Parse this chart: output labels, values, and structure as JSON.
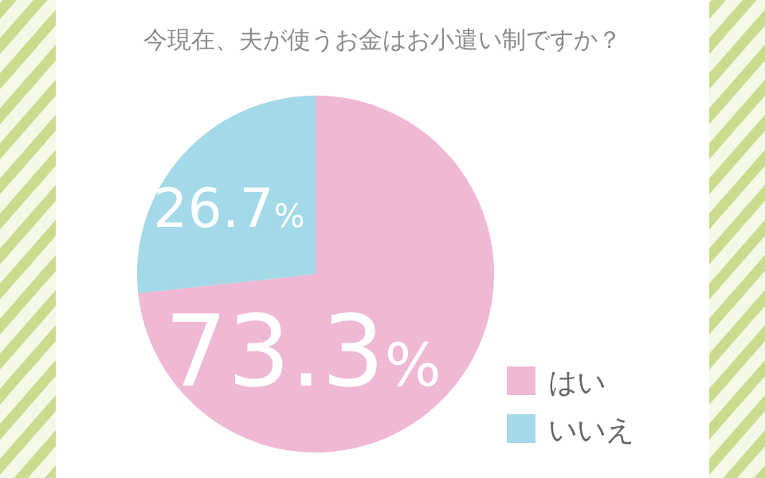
{
  "chart_data": {
    "type": "pie",
    "title": "今現在、夫が使うお金はお小遣い制ですか？",
    "categories": [
      "はい",
      "いいえ"
    ],
    "values": [
      73.3,
      26.7
    ],
    "colors": [
      "#efb8d5",
      "#a3d9e8"
    ],
    "value_labels": [
      "73.3%",
      "26.7%"
    ],
    "legend": "bottom right"
  }
}
